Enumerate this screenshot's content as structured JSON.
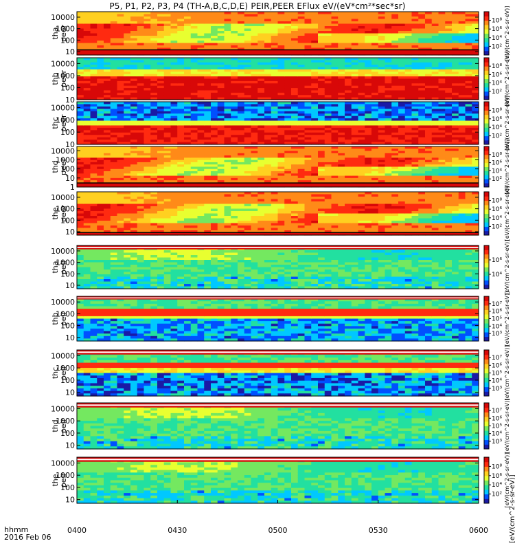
{
  "title": "P5, P1, P2, P3, P4 (TH-A,B,C,D,E) PEIR,PEER EFlux eV/(eV*cm²*sec*sr)",
  "footer": {
    "time_label": "hhmm",
    "date_label": "2016 Feb 06"
  },
  "colorbar_units_label": "[eV/(cm^2-s-sr-eV)]",
  "colors": {
    "spectrum": [
      "#1a1aa6",
      "#0050ff",
      "#00c8ff",
      "#22e0a0",
      "#74e860",
      "#e8ff30",
      "#ffd020",
      "#ff8a18",
      "#ff2a10",
      "#d80808"
    ],
    "fill_band": "#d80808",
    "background": "#ffffff"
  },
  "chart_data": {
    "type": "heatmap",
    "x_unit": "hhmm",
    "x_ticks": [
      "0400",
      "0430",
      "0500",
      "0530",
      "0600"
    ],
    "xlim": [
      "0400",
      "0600"
    ],
    "y_scale": "log",
    "ylabel_unit": "eV",
    "panels": [
      {
        "probe": "tha",
        "species": "peer",
        "ylabel": "tha\npeer",
        "yticks": [
          "10",
          "100",
          "1000",
          "10000"
        ],
        "ylim": [
          5,
          30000
        ],
        "cbar_ticks": [
          "10²",
          "10⁴",
          "10⁶",
          "10⁸"
        ],
        "cbar_label": "[eV/(cm^2-s-sr-eV)]",
        "profile": "peer_dense_low",
        "bottom_band_frac": 0.12
      },
      {
        "probe": "thb",
        "species": "peer",
        "ylabel": "thb\npeer",
        "yticks": [
          "10",
          "100",
          "1000",
          "10000"
        ],
        "ylim": [
          10,
          30000
        ],
        "cbar_ticks": [
          "10²",
          "10⁴",
          "10⁶",
          "10⁸"
        ],
        "cbar_label": "[eV/(cm^2-s-sr-eV)]",
        "profile": "peer_hot_mid",
        "bottom_band_frac": 0.0
      },
      {
        "probe": "thc",
        "species": "peer",
        "ylabel": "thc\npeer",
        "yticks": [
          "10",
          "100",
          "1000",
          "10000"
        ],
        "ylim": [
          10,
          30000
        ],
        "cbar_ticks": [
          "10²",
          "10⁴",
          "10⁶",
          "10⁸"
        ],
        "cbar_label": "[eV/(cm^2-s-sr-eV)]",
        "profile": "peer_hot_low_noisy",
        "bottom_band_frac": 0.0
      },
      {
        "probe": "thd",
        "species": "peer",
        "ylabel": "thd\npeer",
        "yticks": [
          "1",
          "10",
          "100",
          "1000",
          "10000"
        ],
        "ylim": [
          1,
          30000
        ],
        "cbar_ticks": [
          "10²",
          "10⁴",
          "10⁶",
          "10⁸"
        ],
        "cbar_label": "[eV/(cm^2-s-sr-eV)]",
        "profile": "peer_dense_low",
        "bottom_band_frac": 0.1
      },
      {
        "probe": "the",
        "species": "peer",
        "ylabel": "the\npeer",
        "yticks": [
          "10",
          "100",
          "1000",
          "10000"
        ],
        "ylim": [
          5,
          30000
        ],
        "cbar_ticks": [
          "10²",
          "10⁴",
          "10⁶",
          "10⁸"
        ],
        "cbar_label": "[eV/(cm^2-s-sr-eV)]",
        "profile": "peer_dense_low",
        "bottom_band_frac": 0.06
      },
      {
        "probe": "tha",
        "species": "peir",
        "ylabel": "tha\npeir",
        "yticks": [
          "10",
          "100",
          "1000",
          "10000"
        ],
        "ylim": [
          5,
          30000
        ],
        "cbar_ticks": [
          "10⁴",
          "10⁶"
        ],
        "cbar_label": "[eV/(cm^2-s-sr-eV)]",
        "profile": "peir_green",
        "top_band_frac": 0.09
      },
      {
        "probe": "thb",
        "species": "peir",
        "ylabel": "thb\npeir",
        "yticks": [
          "10",
          "100",
          "1000",
          "10000"
        ],
        "ylim": [
          5,
          30000
        ],
        "cbar_ticks": [
          "10³",
          "10⁴",
          "10⁵",
          "10⁶",
          "10⁷"
        ],
        "cbar_label": "[eV/(cm^2-s-sr-eV)]",
        "profile": "peir_band",
        "top_band_frac": 0.07
      },
      {
        "probe": "thc",
        "species": "peir",
        "ylabel": "thc\npeir",
        "yticks": [
          "10",
          "100",
          "1000",
          "10000"
        ],
        "ylim": [
          5,
          30000
        ],
        "cbar_ticks": [
          "10³",
          "10⁴",
          "10⁵",
          "10⁶",
          "10⁷"
        ],
        "cbar_label": "[eV/(cm^2-s-sr-eV)]",
        "profile": "peir_band_noisy",
        "top_band_frac": 0.1
      },
      {
        "probe": "thd",
        "species": "peir",
        "ylabel": "thd\npeir",
        "yticks": [
          "10",
          "100",
          "1000",
          "10000"
        ],
        "ylim": [
          5,
          30000
        ],
        "cbar_ticks": [
          "10³",
          "10⁴",
          "10⁵",
          "10⁶",
          "10⁷"
        ],
        "cbar_label": "[eV/(cm^2-s-sr-eV)]",
        "profile": "peir_green",
        "top_band_frac": 0.1
      },
      {
        "probe": "the",
        "species": "peir",
        "ylabel": "the\npeir",
        "yticks": [
          "10",
          "100",
          "1000",
          "10000"
        ],
        "ylim": [
          5,
          30000
        ],
        "cbar_ticks": [
          "10²",
          "10⁴",
          "10⁶",
          "10⁸"
        ],
        "cbar_label": "[eV/(cm^2-s-sr-eV)]",
        "profile": "peir_green",
        "top_band_frac": 0.1
      }
    ]
  }
}
